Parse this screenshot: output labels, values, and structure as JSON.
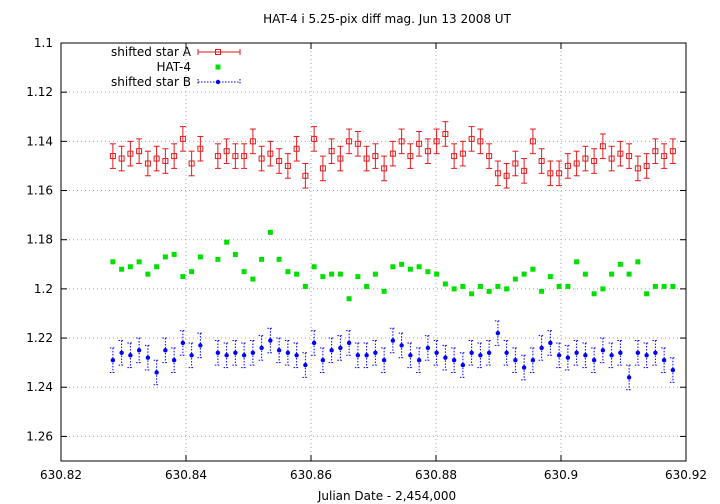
{
  "chart_data": {
    "type": "scatter",
    "title": "HAT-4 i 5.25-pix diff mag. Jun 13 2008 UT",
    "xlabel": "Julian Date - 2,454,000",
    "ylabel": "",
    "xlim": [
      630.82,
      630.92
    ],
    "ylim": [
      1.27,
      1.1
    ],
    "y_reversed": true,
    "grid": true,
    "legend_position": "top-left",
    "x_ticks": [
      630.82,
      630.84,
      630.86,
      630.88,
      630.9,
      630.92
    ],
    "x_tick_labels": [
      "630.82",
      "630.84",
      "630.86",
      "630.88",
      "630.9",
      "630.92"
    ],
    "y_ticks": [
      1.1,
      1.12,
      1.14,
      1.16,
      1.18,
      1.2,
      1.22,
      1.24,
      1.26
    ],
    "y_tick_labels": [
      "1.1",
      "1.12",
      "1.14",
      "1.16",
      "1.18",
      "1.2",
      "1.22",
      "1.24",
      "1.26"
    ],
    "series": [
      {
        "name": "shifted star A",
        "color": "#e31a1c",
        "marker": "open-square",
        "error_bars": true,
        "error": 0.005,
        "x": [
          630.8283,
          630.8297,
          630.8311,
          630.8325,
          630.8339,
          630.8353,
          630.8367,
          630.8381,
          630.8395,
          630.8409,
          630.8423,
          630.8451,
          630.8465,
          630.8479,
          630.8493,
          630.8507,
          630.8521,
          630.8535,
          630.8549,
          630.8563,
          630.8577,
          630.8591,
          630.8605,
          630.8619,
          630.8633,
          630.8647,
          630.8661,
          630.8675,
          630.8689,
          630.8703,
          630.8717,
          630.8731,
          630.8745,
          630.8759,
          630.8773,
          630.8787,
          630.8801,
          630.8815,
          630.8829,
          630.8843,
          630.8857,
          630.8871,
          630.8885,
          630.8899,
          630.8913,
          630.8927,
          630.8941,
          630.8955,
          630.8969,
          630.8983,
          630.8997,
          630.9011,
          630.9025,
          630.9039,
          630.9053,
          630.9067,
          630.9081,
          630.9095,
          630.9109,
          630.9123,
          630.9137,
          630.9151,
          630.9165,
          630.9179
        ],
        "y": [
          1.146,
          1.147,
          1.145,
          1.144,
          1.149,
          1.147,
          1.148,
          1.146,
          1.139,
          1.149,
          1.143,
          1.146,
          1.144,
          1.146,
          1.146,
          1.14,
          1.147,
          1.145,
          1.148,
          1.15,
          1.143,
          1.154,
          1.139,
          1.151,
          1.144,
          1.147,
          1.14,
          1.141,
          1.147,
          1.146,
          1.151,
          1.145,
          1.14,
          1.146,
          1.141,
          1.144,
          1.14,
          1.137,
          1.146,
          1.145,
          1.139,
          1.14,
          1.146,
          1.153,
          1.154,
          1.149,
          1.152,
          1.14,
          1.148,
          1.153,
          1.153,
          1.15,
          1.149,
          1.147,
          1.148,
          1.142,
          1.147,
          1.145,
          1.146,
          1.151,
          1.15,
          1.144,
          1.146,
          1.144
        ]
      },
      {
        "name": "HAT-4",
        "color": "#00e000",
        "marker": "filled-square",
        "error_bars": false,
        "x": [
          630.8283,
          630.8297,
          630.8311,
          630.8325,
          630.8339,
          630.8353,
          630.8367,
          630.8381,
          630.8395,
          630.8409,
          630.8423,
          630.8451,
          630.8465,
          630.8479,
          630.8493,
          630.8507,
          630.8521,
          630.8535,
          630.8549,
          630.8563,
          630.8577,
          630.8591,
          630.8605,
          630.8619,
          630.8633,
          630.8647,
          630.8661,
          630.8675,
          630.8689,
          630.8703,
          630.8717,
          630.8731,
          630.8745,
          630.8759,
          630.8773,
          630.8787,
          630.8801,
          630.8815,
          630.8829,
          630.8843,
          630.8857,
          630.8871,
          630.8885,
          630.8899,
          630.8913,
          630.8927,
          630.8941,
          630.8955,
          630.8969,
          630.8983,
          630.8997,
          630.9011,
          630.9025,
          630.9039,
          630.9053,
          630.9067,
          630.9081,
          630.9095,
          630.9109,
          630.9123,
          630.9137,
          630.9151,
          630.9165,
          630.9179
        ],
        "y": [
          1.189,
          1.192,
          1.191,
          1.189,
          1.194,
          1.191,
          1.187,
          1.186,
          1.195,
          1.193,
          1.187,
          1.188,
          1.181,
          1.186,
          1.193,
          1.196,
          1.188,
          1.177,
          1.188,
          1.193,
          1.194,
          1.199,
          1.191,
          1.195,
          1.194,
          1.194,
          1.204,
          1.195,
          1.199,
          1.194,
          1.201,
          1.191,
          1.19,
          1.192,
          1.191,
          1.193,
          1.194,
          1.198,
          1.2,
          1.199,
          1.202,
          1.199,
          1.201,
          1.199,
          1.2,
          1.196,
          1.194,
          1.192,
          1.201,
          1.195,
          1.199,
          1.199,
          1.189,
          1.194,
          1.202,
          1.2,
          1.194,
          1.19,
          1.194,
          1.189,
          1.202,
          1.199,
          1.199,
          1.199
        ]
      },
      {
        "name": "shifted star B",
        "color": "#0000ff",
        "marker": "filled-circle",
        "error_bars": true,
        "error": 0.005,
        "line_style": "dotted",
        "x": [
          630.8283,
          630.8297,
          630.8311,
          630.8325,
          630.8339,
          630.8353,
          630.8367,
          630.8381,
          630.8395,
          630.8409,
          630.8423,
          630.8451,
          630.8465,
          630.8479,
          630.8493,
          630.8507,
          630.8521,
          630.8535,
          630.8549,
          630.8563,
          630.8577,
          630.8591,
          630.8605,
          630.8619,
          630.8633,
          630.8647,
          630.8661,
          630.8675,
          630.8689,
          630.8703,
          630.8717,
          630.8731,
          630.8745,
          630.8759,
          630.8773,
          630.8787,
          630.8801,
          630.8815,
          630.8829,
          630.8843,
          630.8857,
          630.8871,
          630.8885,
          630.8899,
          630.8913,
          630.8927,
          630.8941,
          630.8955,
          630.8969,
          630.8983,
          630.8997,
          630.9011,
          630.9025,
          630.9039,
          630.9053,
          630.9067,
          630.9081,
          630.9095,
          630.9109,
          630.9123,
          630.9137,
          630.9151,
          630.9165,
          630.9179
        ],
        "y": [
          1.229,
          1.226,
          1.227,
          1.225,
          1.228,
          1.234,
          1.225,
          1.229,
          1.222,
          1.227,
          1.223,
          1.226,
          1.227,
          1.226,
          1.227,
          1.226,
          1.224,
          1.221,
          1.225,
          1.226,
          1.227,
          1.231,
          1.222,
          1.229,
          1.225,
          1.224,
          1.222,
          1.227,
          1.227,
          1.226,
          1.229,
          1.221,
          1.223,
          1.227,
          1.229,
          1.224,
          1.226,
          1.228,
          1.229,
          1.231,
          1.226,
          1.227,
          1.226,
          1.218,
          1.226,
          1.229,
          1.232,
          1.229,
          1.224,
          1.222,
          1.227,
          1.228,
          1.226,
          1.227,
          1.229,
          1.225,
          1.227,
          1.226,
          1.236,
          1.226,
          1.227,
          1.226,
          1.229,
          1.233
        ]
      }
    ]
  }
}
